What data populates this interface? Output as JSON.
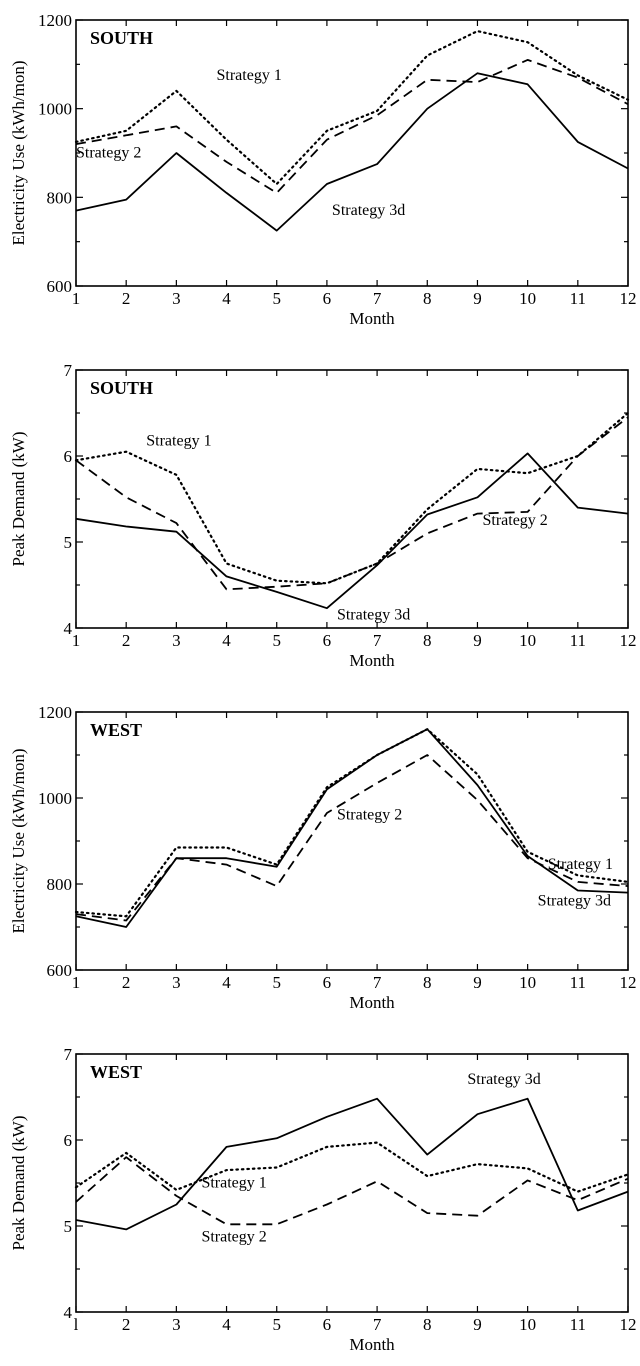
{
  "chart_data": [
    {
      "type": "line",
      "title": "SOUTH",
      "xlabel": "Month",
      "ylabel": "Electricity Use (kWh/mon)",
      "x": [
        1,
        2,
        3,
        4,
        5,
        6,
        7,
        8,
        9,
        10,
        11,
        12
      ],
      "xlim": [
        1,
        12
      ],
      "ylim": [
        600,
        1200
      ],
      "yticks": [
        600,
        800,
        1000,
        1200
      ],
      "series": [
        {
          "name": "Strategy 1",
          "style": "dotted",
          "values": [
            925,
            950,
            1040,
            930,
            830,
            950,
            995,
            1120,
            1175,
            1150,
            1075,
            1020
          ]
        },
        {
          "name": "Strategy 2",
          "style": "dashed",
          "values": [
            920,
            940,
            960,
            880,
            810,
            930,
            985,
            1065,
            1060,
            1110,
            1070,
            1010
          ]
        },
        {
          "name": "Strategy 3d",
          "style": "solid",
          "values": [
            770,
            795,
            900,
            810,
            725,
            830,
            875,
            1000,
            1080,
            1055,
            925,
            865
          ]
        }
      ],
      "annotations": [
        {
          "text": "Strategy 1",
          "x": 3.8,
          "y": 1065
        },
        {
          "text": "Strategy 2",
          "x": 1.0,
          "y": 890
        },
        {
          "text": "Strategy 3d",
          "x": 6.1,
          "y": 760
        }
      ],
      "grid": false
    },
    {
      "type": "line",
      "title": "SOUTH",
      "xlabel": "Month",
      "ylabel": "Peak Demand (kW)",
      "x": [
        1,
        2,
        3,
        4,
        5,
        6,
        7,
        8,
        9,
        10,
        11,
        12
      ],
      "xlim": [
        1,
        12
      ],
      "ylim": [
        4,
        7
      ],
      "yticks": [
        4,
        5,
        6,
        7
      ],
      "series": [
        {
          "name": "Strategy 1",
          "style": "dotted",
          "values": [
            5.95,
            6.05,
            5.78,
            4.75,
            4.55,
            4.52,
            4.75,
            5.38,
            5.85,
            5.8,
            6.0,
            6.5
          ]
        },
        {
          "name": "Strategy 2",
          "style": "dashed",
          "values": [
            5.95,
            5.52,
            5.22,
            4.45,
            4.48,
            4.52,
            4.75,
            5.1,
            5.33,
            5.35,
            6.0,
            6.45
          ]
        },
        {
          "name": "Strategy 3d",
          "style": "solid",
          "values": [
            5.27,
            5.18,
            5.12,
            4.6,
            4.42,
            4.23,
            4.73,
            5.32,
            5.52,
            6.03,
            5.4,
            5.33
          ]
        }
      ],
      "annotations": [
        {
          "text": "Strategy 1",
          "x": 2.4,
          "y": 6.12
        },
        {
          "text": "Strategy 2",
          "x": 9.1,
          "y": 5.2
        },
        {
          "text": "Strategy 3d",
          "x": 6.2,
          "y": 4.1
        }
      ],
      "grid": false
    },
    {
      "type": "line",
      "title": "WEST",
      "xlabel": "Month",
      "ylabel": "Electricity Use (kWh/mon)",
      "x": [
        1,
        2,
        3,
        4,
        5,
        6,
        7,
        8,
        9,
        10,
        11,
        12
      ],
      "xlim": [
        1,
        12
      ],
      "ylim": [
        600,
        1200
      ],
      "yticks": [
        600,
        800,
        1000,
        1200
      ],
      "series": [
        {
          "name": "Strategy 1",
          "style": "dotted",
          "values": [
            735,
            725,
            885,
            885,
            845,
            1025,
            1100,
            1160,
            1055,
            875,
            820,
            805
          ]
        },
        {
          "name": "Strategy 2",
          "style": "dashed",
          "values": [
            730,
            715,
            860,
            845,
            795,
            965,
            1035,
            1100,
            995,
            860,
            805,
            795
          ]
        },
        {
          "name": "Strategy 3d",
          "style": "solid",
          "values": [
            725,
            700,
            860,
            860,
            840,
            1020,
            1100,
            1160,
            1030,
            865,
            785,
            780
          ]
        }
      ],
      "annotations": [
        {
          "text": "Strategy 2",
          "x": 6.2,
          "y": 950
        },
        {
          "text": "Strategy 1",
          "x": 10.4,
          "y": 835
        },
        {
          "text": "Strategy 3d",
          "x": 10.2,
          "y": 750
        }
      ],
      "grid": false
    },
    {
      "type": "line",
      "title": "WEST",
      "xlabel": "Month",
      "ylabel": "Peak Demand (kW)",
      "x": [
        1,
        2,
        3,
        4,
        5,
        6,
        7,
        8,
        9,
        10,
        11,
        12
      ],
      "xlim": [
        1,
        12
      ],
      "ylim": [
        4,
        7
      ],
      "yticks": [
        4,
        5,
        6,
        7
      ],
      "xtick_labels": [
        "l",
        "2",
        "3",
        "4",
        "5",
        "6",
        "7",
        "8",
        "9",
        "10",
        "11",
        "12"
      ],
      "series": [
        {
          "name": "Strategy 1",
          "style": "dotted",
          "values": [
            5.45,
            5.85,
            5.42,
            5.65,
            5.68,
            5.92,
            5.97,
            5.58,
            5.72,
            5.67,
            5.4,
            5.6
          ]
        },
        {
          "name": "Strategy 2",
          "style": "dashed",
          "values": [
            5.28,
            5.8,
            5.35,
            5.02,
            5.02,
            5.25,
            5.52,
            5.15,
            5.12,
            5.53,
            5.3,
            5.55
          ]
        },
        {
          "name": "Strategy 3d",
          "style": "solid",
          "values": [
            5.07,
            4.96,
            5.25,
            5.92,
            6.02,
            6.27,
            6.48,
            5.83,
            6.3,
            6.48,
            5.18,
            5.4
          ]
        }
      ],
      "annotations": [
        {
          "text": "Strategy 3d",
          "x": 8.8,
          "y": 6.65
        },
        {
          "text": "Strategy 1",
          "x": 3.5,
          "y": 5.45
        },
        {
          "text": "Strategy 2",
          "x": 3.5,
          "y": 4.82
        }
      ],
      "grid": false
    }
  ]
}
